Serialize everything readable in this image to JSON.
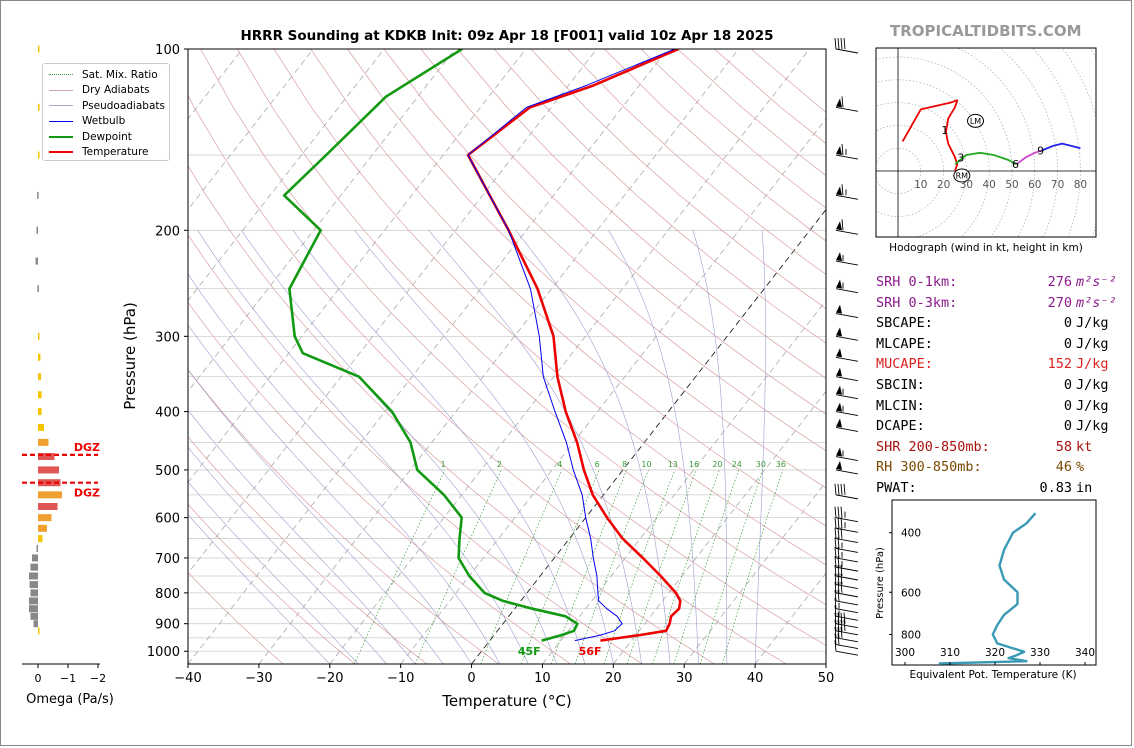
{
  "title": "HRRR Sounding at KDKB Init: 09z Apr 18 [F001] valid 10z Apr 18 2025",
  "brand": "TROPICALTIDBITS.COM",
  "chart_data": [
    {
      "type": "line",
      "name": "skewt",
      "xlabel": "Temperature (°C)",
      "ylabel": "Pressure (hPa)",
      "xlim": [
        -40,
        50
      ],
      "ylim": [
        1050,
        100
      ],
      "yscale": "log",
      "xticks": [
        -40,
        -30,
        -20,
        -10,
        0,
        10,
        20,
        30,
        40,
        50
      ],
      "xtick_labels": [
        "−40",
        "−30",
        "−20",
        "−10",
        "0",
        "10",
        "20",
        "30",
        "40",
        "50"
      ],
      "yticks": [
        100,
        200,
        300,
        400,
        500,
        600,
        700,
        800,
        900,
        1000
      ],
      "mixing_ratio_labels": [
        "1",
        "2",
        "4",
        "6",
        "8",
        "10",
        "13",
        "16",
        "20",
        "24",
        "30",
        "36"
      ],
      "series": [
        {
          "name": "Temperature",
          "color": "#ee0000",
          "p": [
            960,
            940,
            925,
            900,
            875,
            850,
            825,
            800,
            750,
            700,
            650,
            600,
            550,
            500,
            450,
            400,
            350,
            300,
            250,
            200,
            175,
            150,
            125,
            115,
            100
          ],
          "t": [
            15.6,
            20.5,
            23.8,
            23.5,
            22.9,
            23.2,
            22.5,
            21.0,
            17.0,
            12.5,
            7.5,
            3.0,
            -1.5,
            -5.5,
            -9.5,
            -14.5,
            -19.5,
            -24.5,
            -32.0,
            -42.5,
            -49.0,
            -56.5,
            -53.0,
            -46.5,
            -38.5
          ]
        },
        {
          "name": "Dewpoint",
          "color": "#119911",
          "p": [
            960,
            940,
            925,
            900,
            875,
            850,
            825,
            800,
            750,
            700,
            650,
            600,
            550,
            500,
            450,
            400,
            350,
            320,
            300,
            250,
            200,
            175,
            150,
            120,
            100
          ],
          "t": [
            7.3,
            9.5,
            10.8,
            10.5,
            8.0,
            2.5,
            -2.5,
            -6.0,
            -10.0,
            -13.5,
            -15.5,
            -17.5,
            -22.5,
            -29.0,
            -33.0,
            -39.0,
            -47.5,
            -58.0,
            -61.0,
            -67.0,
            -69.0,
            -78.0,
            -76.5,
            -74.5,
            -69.0
          ]
        },
        {
          "name": "Wetbulb",
          "color": "#0000ee",
          "p": [
            960,
            940,
            925,
            900,
            875,
            850,
            825,
            800,
            750,
            700,
            650,
            600,
            550,
            500,
            450,
            400,
            350,
            300,
            250,
            200,
            175,
            150,
            125,
            115,
            100
          ],
          "t": [
            12.0,
            15.0,
            16.5,
            16.8,
            15.3,
            13.0,
            11.0,
            10.0,
            8.0,
            5.5,
            3.0,
            0.0,
            -3.0,
            -7.0,
            -11.0,
            -16.0,
            -21.5,
            -26.5,
            -33.0,
            -42.5,
            -49.0,
            -56.5,
            -53.5,
            -47.5,
            -39.0
          ]
        }
      ],
      "sfc_labels": [
        {
          "text": "45F",
          "t": 7.3,
          "color": "#119911"
        },
        {
          "text": "56F",
          "t": 15.6,
          "color": "#ee0000"
        }
      ]
    },
    {
      "type": "bar",
      "name": "omega",
      "xlabel": "Omega (Pa/s)",
      "xticks": [
        0,
        -1,
        -2
      ],
      "xtick_labels": [
        "0",
        "−1",
        "−2"
      ],
      "p": [
        100,
        125,
        150,
        175,
        200,
        225,
        250,
        300,
        325,
        350,
        375,
        400,
        425,
        450,
        475,
        500,
        525,
        550,
        575,
        600,
        625,
        650,
        675,
        700,
        725,
        750,
        775,
        800,
        825,
        850,
        875,
        900,
        925
      ],
      "values": [
        -0.05,
        -0.05,
        -0.03,
        0.03,
        0.05,
        0.08,
        0.02,
        -0.03,
        -0.08,
        -0.1,
        -0.12,
        -0.12,
        -0.2,
        -0.35,
        -0.55,
        -0.7,
        -0.75,
        -0.8,
        -0.65,
        -0.45,
        -0.3,
        -0.15,
        0.05,
        0.2,
        0.25,
        0.3,
        0.28,
        0.25,
        0.3,
        0.3,
        0.25,
        0.15,
        -0.05
      ],
      "dgz": [
        {
          "p": 472,
          "label": "DGZ"
        },
        {
          "p": 525,
          "label": "DGZ"
        }
      ]
    },
    {
      "type": "line",
      "name": "hodograph",
      "xlabel": "Hodograph (wind in kt, height in km)",
      "ring_labels": [
        "10",
        "20",
        "30",
        "40",
        "50",
        "60",
        "70",
        "80"
      ],
      "height_labels": [
        "1",
        "3",
        "6",
        "9"
      ],
      "storm_labels": [
        "LM",
        "RM"
      ],
      "segments": [
        {
          "color": "#ee0000",
          "u": [
            2,
            10,
            23,
            26,
            25,
            22,
            21,
            22,
            25,
            26,
            25
          ],
          "v": [
            13,
            27,
            30,
            31,
            28,
            23,
            17,
            12,
            6,
            3,
            0
          ]
        },
        {
          "color": "#22aa22",
          "u": [
            25,
            30,
            36,
            42,
            48,
            52
          ],
          "v": [
            3,
            7,
            8,
            7,
            5,
            3
          ]
        },
        {
          "color": "#cc44cc",
          "u": [
            52,
            56,
            60,
            63
          ],
          "v": [
            3,
            6,
            8,
            9
          ]
        },
        {
          "color": "#2222ee",
          "u": [
            63,
            68,
            72,
            76,
            80
          ],
          "v": [
            9,
            11,
            12,
            11,
            10
          ]
        }
      ],
      "storm_motion": {
        "LM": [
          34,
          22
        ],
        "RM": [
          28,
          -2
        ]
      }
    },
    {
      "type": "line",
      "name": "theta_e",
      "xlabel": "Equivalent Pot. Temperature (K)",
      "ylabel": "Pressure (hPa)",
      "xticks": [
        300,
        310,
        320,
        330,
        340
      ],
      "yticks": [
        400,
        600,
        800
      ],
      "series": [
        {
          "name": "",
          "color": "#3a9ab5",
          "p": [
            960,
            940,
            925,
            900,
            875,
            850,
            800,
            750,
            700,
            650,
            600,
            550,
            500,
            450,
            400,
            375,
            350
          ],
          "theta_e": [
            327.0,
            323.0,
            324.5,
            326.5,
            323.5,
            320.5,
            319.5,
            320.5,
            322.0,
            325.0,
            325.0,
            322.0,
            321.0,
            322.0,
            324.0,
            327.0,
            329.0
          ]
        }
      ]
    }
  ],
  "legend": [
    {
      "label": "Sat. Mix. Ratio",
      "color": "#4aa04a"
    },
    {
      "label": "Dry Adiabats",
      "color": "#ccaaaa"
    },
    {
      "label": "Pseudoadiabats",
      "color": "#aaaacc"
    },
    {
      "label": "Wetbulb",
      "color": "#0000ee"
    },
    {
      "label": "Dewpoint",
      "color": "#119911"
    },
    {
      "label": "Temperature",
      "color": "#ee0000"
    }
  ],
  "params": [
    {
      "label": "SRH 0-1km:",
      "value": "276",
      "unit": "m²s⁻²",
      "color": "#8b1a8b"
    },
    {
      "label": "SRH 0-3km:",
      "value": "270",
      "unit": "m²s⁻²",
      "color": "#8b1a8b"
    },
    {
      "label": "SBCAPE:",
      "value": "0",
      "unit": "J/kg",
      "color": "#000000"
    },
    {
      "label": "MLCAPE:",
      "value": "0",
      "unit": "J/kg",
      "color": "#000000"
    },
    {
      "label": "MUCAPE:",
      "value": "152",
      "unit": "J/kg",
      "color": "#dd2222"
    },
    {
      "label": "SBCIN:",
      "value": "0",
      "unit": "J/kg",
      "color": "#000000"
    },
    {
      "label": "MLCIN:",
      "value": "0",
      "unit": "J/kg",
      "color": "#000000"
    },
    {
      "label": "DCAPE:",
      "value": "0",
      "unit": "J/kg",
      "color": "#000000"
    },
    {
      "label": "SHR 200-850mb:",
      "value": "58",
      "unit": "kt",
      "color": "#aa1111"
    },
    {
      "label": "RH 300-850mb:",
      "value": "46",
      "unit": "%",
      "color": "#7a4a00"
    },
    {
      "label": "PWAT:",
      "value": "0.83",
      "unit": "in",
      "color": "#000000"
    }
  ],
  "barbs": {
    "p": [
      100,
      125,
      150,
      175,
      200,
      225,
      250,
      275,
      300,
      325,
      350,
      375,
      400,
      425,
      475,
      500,
      550,
      600,
      625,
      650,
      675,
      700,
      725,
      750,
      775,
      800,
      825,
      850,
      875,
      900,
      925,
      950,
      975,
      1000
    ],
    "kt": [
      40,
      60,
      65,
      65,
      60,
      55,
      55,
      50,
      50,
      50,
      50,
      55,
      55,
      50,
      55,
      50,
      40,
      35,
      35,
      30,
      25,
      25,
      25,
      30,
      30,
      30,
      20,
      15,
      15,
      40,
      40,
      30,
      20,
      10
    ]
  }
}
